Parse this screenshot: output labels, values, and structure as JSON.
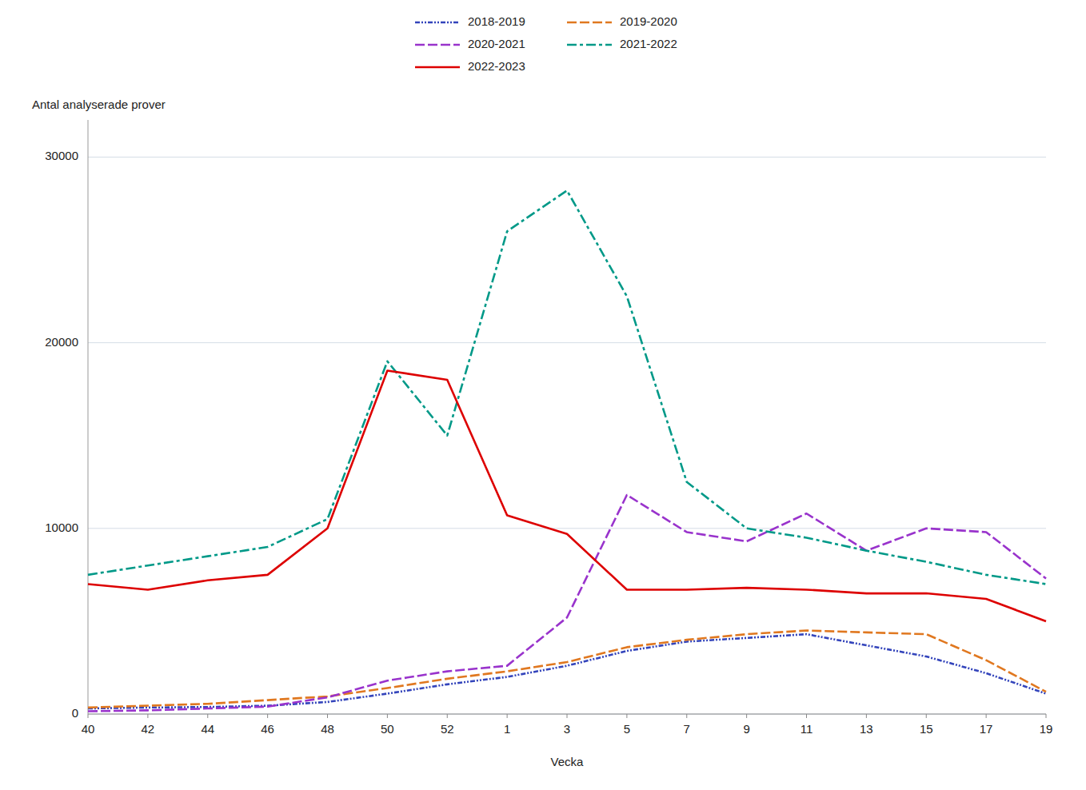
{
  "chart_data": {
    "type": "line",
    "x_label": "Vecka",
    "y_label": "Antal analyserade prover",
    "categories": [
      "40",
      "42",
      "44",
      "46",
      "48",
      "50",
      "52",
      "1",
      "3",
      "5",
      "7",
      "9",
      "11",
      "13",
      "15",
      "17",
      "19"
    ],
    "ylim": [
      0,
      32000
    ],
    "yticks": [
      0,
      10000,
      20000,
      30000
    ],
    "grid": true,
    "legend": "top",
    "series": [
      {
        "name": "2018-2019",
        "color": "#3344bb",
        "line_style": "dashdotdot",
        "values": [
          300,
          350,
          380,
          450,
          650,
          1100,
          1600,
          2000,
          2600,
          3400,
          3900,
          4100,
          4300,
          3700,
          3100,
          2200,
          1100
        ]
      },
      {
        "name": "2019-2020",
        "color": "#e07820",
        "line_style": "dashed",
        "values": [
          350,
          450,
          550,
          750,
          950,
          1400,
          1900,
          2300,
          2800,
          3600,
          4000,
          4300,
          4500,
          4400,
          4300,
          2900,
          1200
        ]
      },
      {
        "name": "2020-2021",
        "color": "#9933cc",
        "line_style": "dashed",
        "values": [
          150,
          200,
          300,
          400,
          900,
          1800,
          2300,
          2600,
          5200,
          11800,
          9800,
          9300,
          10800,
          8800,
          10000,
          9800,
          7300
        ]
      },
      {
        "name": "2021-2022",
        "color": "#009988",
        "line_style": "dashdot",
        "values": [
          7500,
          8000,
          8500,
          9000,
          10500,
          19000,
          15000,
          26000,
          28200,
          22500,
          12500,
          10000,
          9500,
          8800,
          8200,
          7500,
          7000
        ]
      },
      {
        "name": "2022-2023",
        "color": "#dd0000",
        "line_style": "solid",
        "values": [
          7000,
          6700,
          7200,
          7500,
          10000,
          18500,
          18000,
          10700,
          9700,
          6700,
          6700,
          6800,
          6700,
          6500,
          6500,
          6200,
          5000
        ]
      }
    ]
  }
}
